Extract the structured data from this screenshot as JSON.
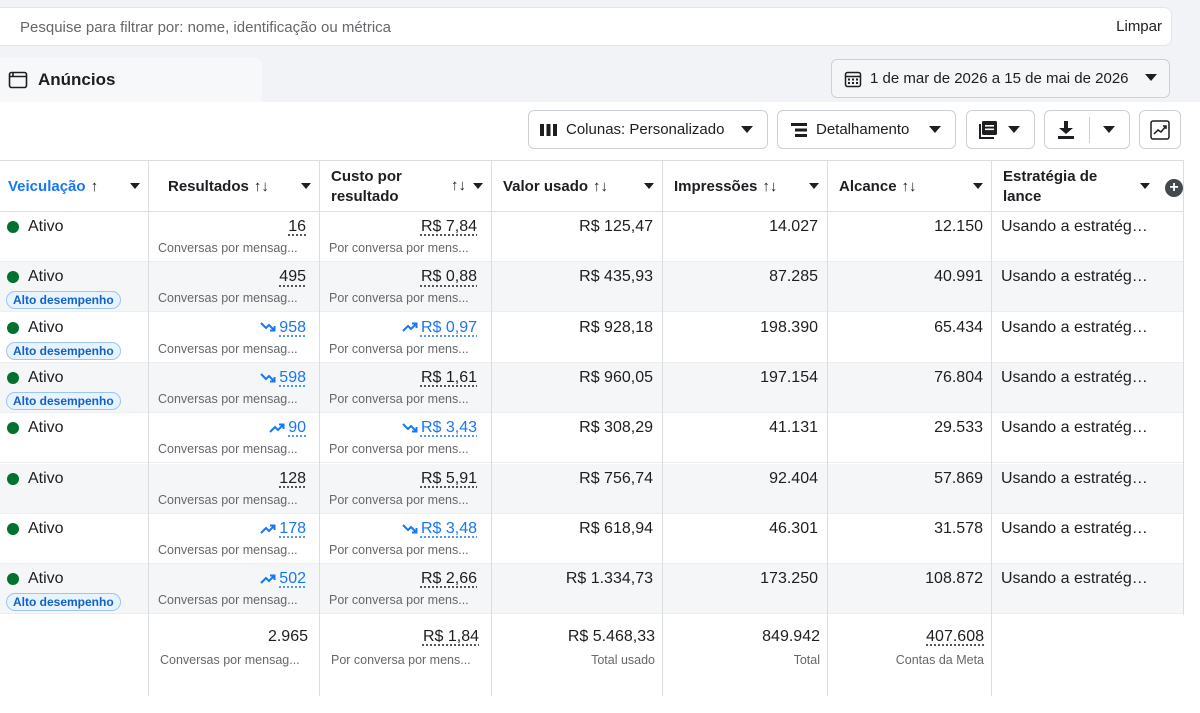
{
  "search": {
    "placeholder": "Pesquise para filtrar por: nome, identificação ou métrica",
    "value": "",
    "clear_label": "Limpar"
  },
  "tab": {
    "label": "Anúncios",
    "icon": "ads-panel-icon"
  },
  "date_range": {
    "label": "1 de mar de 2026 a 15 de mai de 2026",
    "icon": "calendar-icon"
  },
  "toolbar": {
    "columns_label": "Colunas: Personalizado",
    "breakdown_label": "Detalhamento",
    "reports_icon": "reports-icon",
    "export_icon": "download-icon",
    "chart_icon": "chart-trend-icon"
  },
  "headers": {
    "delivery": "Veiculação",
    "results": "Resultados",
    "cpr_line1": "Custo por",
    "cpr_line2": "resultado",
    "spent": "Valor usado",
    "impressions": "Impressões",
    "reach": "Alcance",
    "bid_line1": "Estratégia de",
    "bid_line2": "lance",
    "sort_up": "↑",
    "sort_both": "↑↓"
  },
  "rows": [
    {
      "status": "Ativo",
      "badge": "",
      "results": "16",
      "results_trend": "",
      "results_sub": "Conversas por mensag...",
      "cpr": "R$ 7,84",
      "cpr_trend": "",
      "cpr_sub": "Por conversa por mens...",
      "spent": "R$ 125,47",
      "impressions": "14.027",
      "reach": "12.150",
      "bid": "Usando a estratégia de lance"
    },
    {
      "status": "Ativo",
      "badge": "Alto desempenho",
      "results": "495",
      "results_trend": "",
      "results_sub": "Conversas por mensag...",
      "cpr": "R$ 0,88",
      "cpr_trend": "",
      "cpr_sub": "Por conversa por mens...",
      "spent": "R$ 435,93",
      "impressions": "87.285",
      "reach": "40.991",
      "bid": "Usando a estratégia de lance"
    },
    {
      "status": "Ativo",
      "badge": "Alto desempenho",
      "results": "958",
      "results_trend": "down",
      "results_sub": "Conversas por mensag...",
      "cpr": "R$ 0,97",
      "cpr_trend": "up",
      "cpr_sub": "Por conversa por mens...",
      "spent": "R$ 928,18",
      "impressions": "198.390",
      "reach": "65.434",
      "bid": "Usando a estratégia de lance"
    },
    {
      "status": "Ativo",
      "badge": "Alto desempenho",
      "results": "598",
      "results_trend": "down",
      "results_sub": "Conversas por mensag...",
      "cpr": "R$ 1,61",
      "cpr_trend": "",
      "cpr_sub": "Por conversa por mens...",
      "spent": "R$ 960,05",
      "impressions": "197.154",
      "reach": "76.804",
      "bid": "Usando a estratégia de lance"
    },
    {
      "status": "Ativo",
      "badge": "",
      "results": "90",
      "results_trend": "up",
      "results_sub": "Conversas por mensag...",
      "cpr": "R$ 3,43",
      "cpr_trend": "down",
      "cpr_sub": "Por conversa por mens...",
      "spent": "R$ 308,29",
      "impressions": "41.131",
      "reach": "29.533",
      "bid": "Usando a estratégia de lance"
    },
    {
      "status": "Ativo",
      "badge": "",
      "results": "128",
      "results_trend": "",
      "results_sub": "Conversas por mensag...",
      "cpr": "R$ 5,91",
      "cpr_trend": "",
      "cpr_sub": "Por conversa por mens...",
      "spent": "R$ 756,74",
      "impressions": "92.404",
      "reach": "57.869",
      "bid": "Usando a estratégia de lance"
    },
    {
      "status": "Ativo",
      "badge": "",
      "results": "178",
      "results_trend": "up",
      "results_sub": "Conversas por mensag...",
      "cpr": "R$ 3,48",
      "cpr_trend": "down",
      "cpr_sub": "Por conversa por mens...",
      "spent": "R$ 618,94",
      "impressions": "46.301",
      "reach": "31.578",
      "bid": "Usando a estratégia de lance"
    },
    {
      "status": "Ativo",
      "badge": "Alto desempenho",
      "results": "502",
      "results_trend": "up",
      "results_sub": "Conversas por mensag...",
      "cpr": "R$ 2,66",
      "cpr_trend": "",
      "cpr_sub": "Por conversa por mens...",
      "spent": "R$ 1.334,73",
      "impressions": "173.250",
      "reach": "108.872",
      "bid": "Usando a estratégia de lance"
    }
  ],
  "totals": {
    "results": "2.965",
    "results_sub": "Conversas por mensag...",
    "cpr": "R$ 1,84",
    "cpr_sub": "Por conversa por mens...",
    "spent": "R$ 5.468,33",
    "spent_sub": "Total usado",
    "impressions": "849.942",
    "impressions_sub": "Total",
    "reach": "407.608",
    "reach_sub": "Contas da Meta"
  },
  "colors": {
    "link_blue": "#1877f2",
    "active_green": "#00712f",
    "badge_blue": "#1261c4"
  }
}
